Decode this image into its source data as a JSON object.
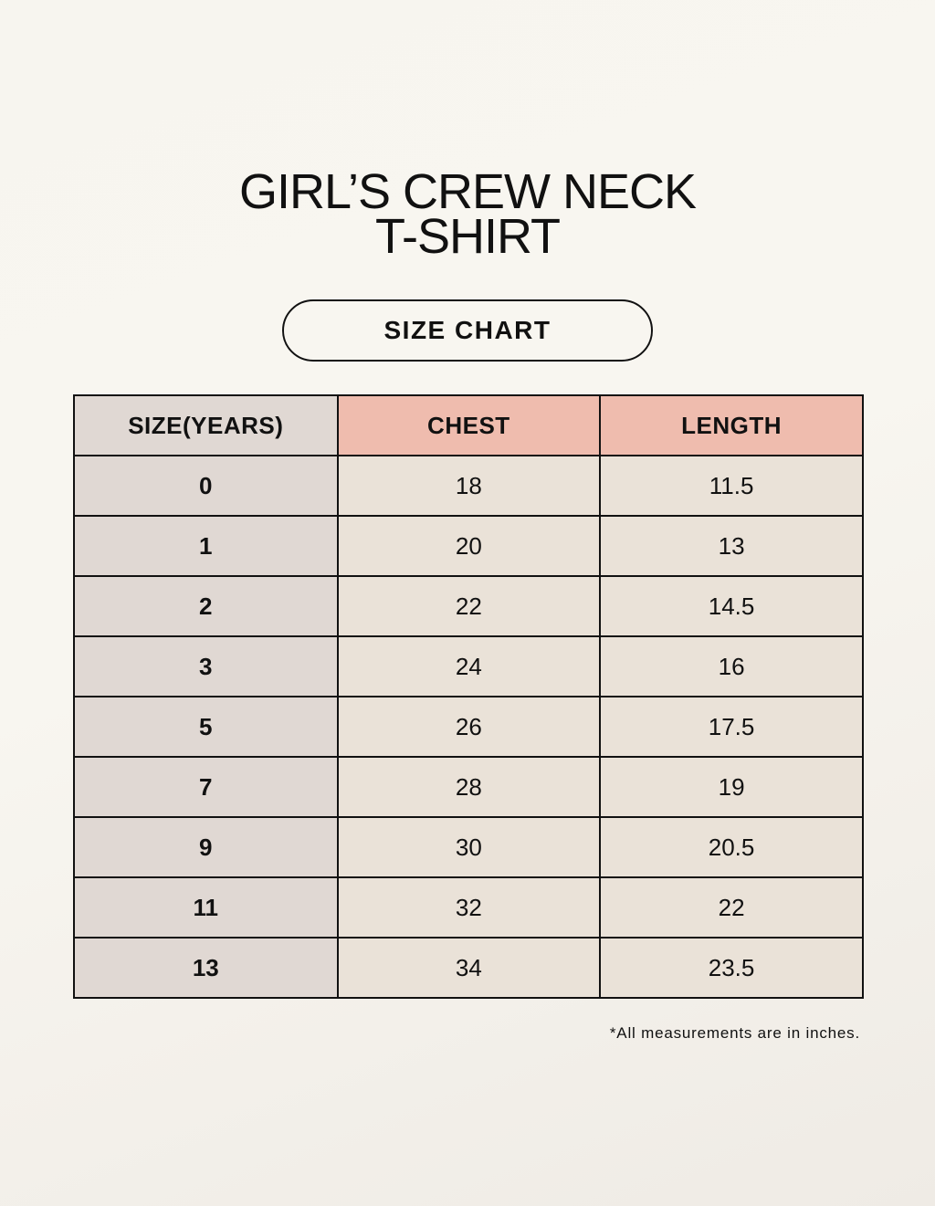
{
  "title": {
    "line1": "GIRL’S CREW NECK",
    "line2": "T-SHIRT"
  },
  "subtitle_pill": "SIZE CHART",
  "table": {
    "headers": [
      "SIZE(YEARS)",
      "CHEST",
      "LENGTH"
    ],
    "rows": [
      [
        "0",
        "18",
        "11.5"
      ],
      [
        "1",
        "20",
        "13"
      ],
      [
        "2",
        "22",
        "14.5"
      ],
      [
        "3",
        "24",
        "16"
      ],
      [
        "5",
        "26",
        "17.5"
      ],
      [
        "7",
        "28",
        "19"
      ],
      [
        "9",
        "30",
        "20.5"
      ],
      [
        "11",
        "32",
        "22"
      ],
      [
        "13",
        "34",
        "23.5"
      ]
    ]
  },
  "footnote": "*All measurements are in inches.",
  "colors": {
    "header_accent": "#efbcae",
    "size_column": "#e0d8d3",
    "cell": "#eae2d8"
  }
}
